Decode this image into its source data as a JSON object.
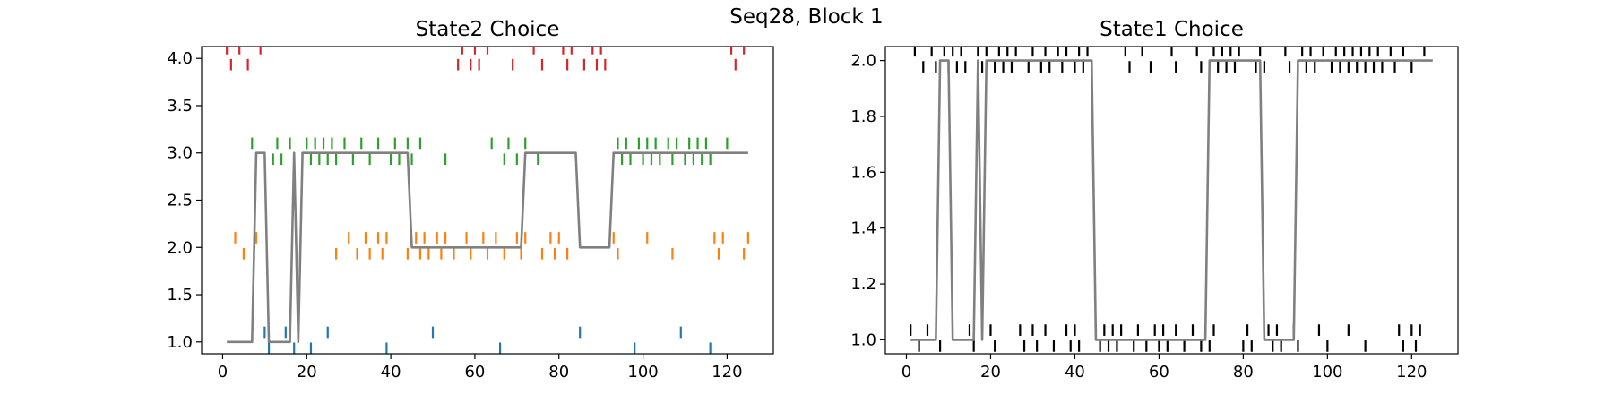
{
  "suptitle": "Seq28, Block 1",
  "chart_data": [
    {
      "type": "line",
      "title": "State2 Choice",
      "xlabel": "",
      "ylabel": "",
      "xlim": [
        -5,
        131
      ],
      "ylim": [
        0.875,
        4.125
      ],
      "xticks": [
        0,
        20,
        40,
        60,
        80,
        100,
        120
      ],
      "yticks": [
        1.0,
        1.5,
        2.0,
        2.5,
        3.0,
        3.5,
        4.0
      ],
      "ytick_labels": [
        "1.0",
        "1.5",
        "2.0",
        "2.5",
        "3.0",
        "3.5",
        "4.0"
      ],
      "grid": false,
      "series": [
        {
          "color": "#808080",
          "style": "line",
          "x": [
            1,
            7,
            8,
            10,
            11,
            16,
            17,
            18,
            19,
            44,
            45,
            71,
            72,
            84,
            85,
            92,
            93,
            125
          ],
          "y": [
            1,
            1,
            3,
            3,
            1,
            1,
            3,
            1,
            3,
            3,
            2,
            2,
            3,
            3,
            2,
            2,
            3,
            3
          ]
        },
        {
          "color": "#d62728",
          "style": "events",
          "value": 4,
          "x": [
            1,
            2,
            4,
            6,
            9,
            56,
            57,
            59,
            60,
            61,
            63,
            69,
            74,
            76,
            81,
            82,
            83,
            86,
            88,
            89,
            90,
            91,
            121,
            122,
            124
          ]
        },
        {
          "color": "#2ca02c",
          "style": "events",
          "value": 3,
          "x": [
            7,
            12,
            13,
            14,
            16,
            17,
            20,
            21,
            22,
            23,
            24,
            25,
            26,
            27,
            29,
            31,
            33,
            35,
            37,
            40,
            41,
            42,
            44,
            45,
            47,
            53,
            64,
            67,
            68,
            70,
            72,
            75,
            94,
            95,
            96,
            97,
            99,
            100,
            101,
            102,
            103,
            104,
            106,
            107,
            108,
            110,
            111,
            112,
            113,
            114,
            115,
            116,
            120
          ]
        },
        {
          "color": "#ff7f0e",
          "style": "events",
          "value": 2,
          "x": [
            3,
            5,
            8,
            27,
            30,
            32,
            34,
            35,
            37,
            38,
            39,
            44,
            46,
            47,
            48,
            49,
            51,
            52,
            53,
            55,
            58,
            59,
            62,
            63,
            65,
            67,
            70,
            71,
            72,
            76,
            78,
            79,
            80,
            82,
            93,
            94,
            101,
            107,
            117,
            118,
            119,
            124,
            125
          ]
        },
        {
          "color": "#1f77b4",
          "style": "events",
          "value": 1,
          "x": [
            10,
            11,
            15,
            17,
            18,
            21,
            25,
            39,
            50,
            66,
            85,
            98,
            109,
            116
          ]
        }
      ]
    },
    {
      "type": "line",
      "title": "State1 Choice",
      "xlabel": "",
      "ylabel": "",
      "xlim": [
        -5,
        131
      ],
      "ylim": [
        0.95,
        2.05
      ],
      "xticks": [
        0,
        20,
        40,
        60,
        80,
        100,
        120
      ],
      "yticks": [
        1.0,
        1.2,
        1.4,
        1.6,
        1.8,
        2.0
      ],
      "ytick_labels": [
        "1.0",
        "1.2",
        "1.4",
        "1.6",
        "1.8",
        "2.0"
      ],
      "grid": false,
      "series": [
        {
          "color": "#808080",
          "style": "line",
          "x": [
            1,
            7,
            8,
            10,
            11,
            16,
            17,
            18,
            19,
            44,
            45,
            71,
            72,
            84,
            85,
            92,
            93,
            125
          ],
          "y": [
            1,
            1,
            2,
            2,
            1,
            1,
            2,
            1,
            2,
            2,
            1,
            1,
            2,
            2,
            1,
            1,
            2,
            2
          ]
        },
        {
          "color": "#000000",
          "style": "events",
          "value": 2,
          "x": [
            2,
            4,
            6,
            7,
            9,
            10,
            11,
            12,
            13,
            14,
            17,
            18,
            19,
            21,
            22,
            23,
            24,
            25,
            26,
            29,
            30,
            32,
            33,
            34,
            36,
            37,
            38,
            40,
            41,
            42,
            43,
            44,
            52,
            53,
            56,
            58,
            63,
            64,
            69,
            70,
            73,
            74,
            75,
            76,
            77,
            78,
            79,
            83,
            84,
            85,
            90,
            91,
            94,
            95,
            96,
            97,
            99,
            101,
            102,
            103,
            104,
            105,
            106,
            107,
            108,
            109,
            110,
            111,
            112,
            113,
            115,
            116,
            118,
            120,
            123
          ]
        },
        {
          "color": "#000000",
          "style": "events",
          "value": 1,
          "x": [
            1,
            3,
            5,
            8,
            15,
            16,
            20,
            21,
            27,
            28,
            30,
            31,
            33,
            35,
            38,
            39,
            40,
            41,
            45,
            46,
            47,
            48,
            49,
            50,
            51,
            54,
            55,
            57,
            59,
            60,
            61,
            62,
            64,
            66,
            68,
            70,
            71,
            72,
            73,
            80,
            81,
            82,
            86,
            87,
            88,
            89,
            92,
            93,
            98,
            100,
            105,
            109,
            117,
            118,
            120,
            121,
            122
          ]
        }
      ]
    }
  ]
}
